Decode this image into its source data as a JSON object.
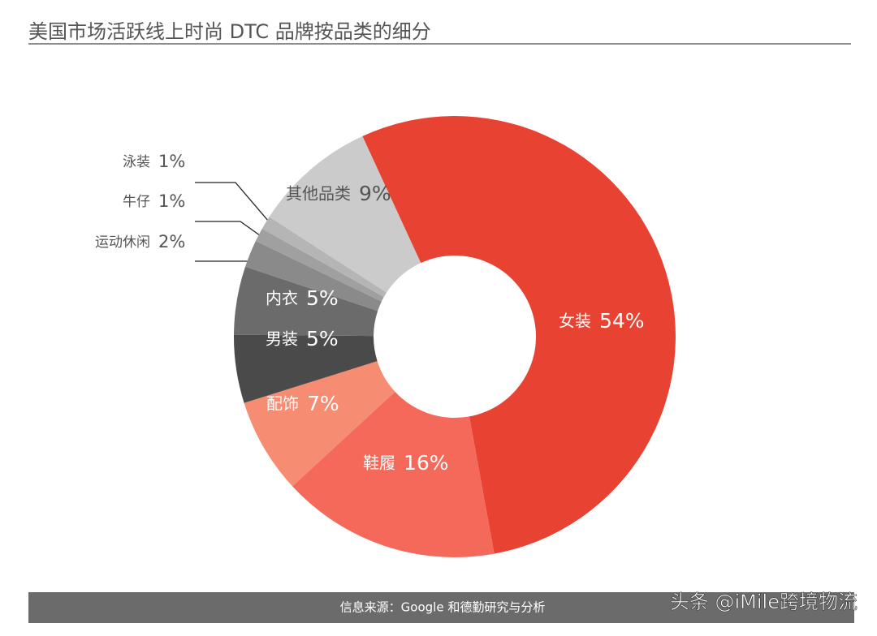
{
  "chart_data": {
    "type": "donut",
    "title": "美国市场活跃线上时尚 DTC 品牌按品类的细分",
    "categories": [
      "女装",
      "鞋履",
      "配饰",
      "男装",
      "内衣",
      "运动休闲",
      "牛仔",
      "泳装",
      "其他品类"
    ],
    "values": [
      54,
      16,
      7,
      5,
      5,
      2,
      1,
      1,
      9
    ],
    "value_labels": [
      "54%",
      "16%",
      "7%",
      "5%",
      "5%",
      "2%",
      "1%",
      "1%",
      "9%"
    ],
    "colors": [
      "#e84332",
      "#f4695a",
      "#f68c72",
      "#4a4a4a",
      "#6b6b6b",
      "#8a8a8a",
      "#a0a0a0",
      "#b5b5b5",
      "#cbcbcb"
    ],
    "source": "信息来源：Google 和德勤研究与分析",
    "watermark": "头条 @iMile跨境物流"
  }
}
